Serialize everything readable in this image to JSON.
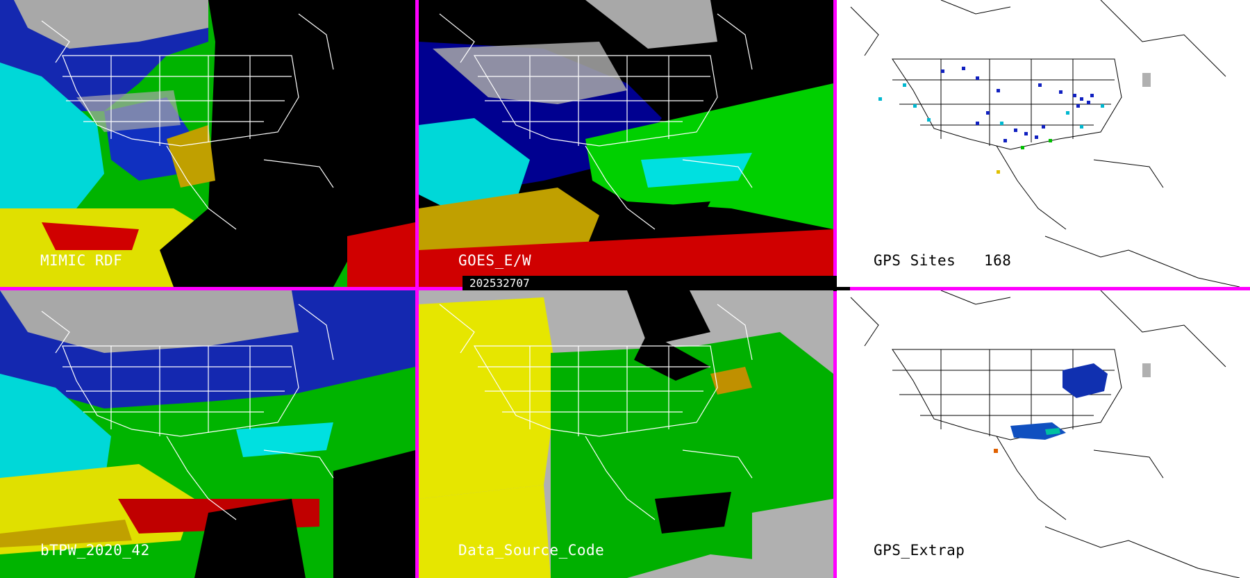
{
  "panels": {
    "p1": {
      "label": "MIMIC RDF"
    },
    "p2": {
      "label": "GOES_E/W",
      "timestamp": "202532707"
    },
    "p3": {
      "label": "GPS Sites",
      "count": "168"
    },
    "p4": {
      "label": "bTPW_2020_42"
    },
    "p5": {
      "label": "Data_Source_Code"
    },
    "p6": {
      "label": "GPS_Extrap"
    }
  },
  "colors": {
    "divider": "#ff00ff",
    "pw_low": "#b0b0b0",
    "pw_1": "#000090",
    "pw_2": "#1030c0",
    "pw_3": "#00e0e0",
    "pw_4": "#00d000",
    "pw_5": "#e0e000",
    "pw_6": "#d00000",
    "source_yellow": "#e6e600",
    "source_green": "#00b000",
    "source_gray": "#b0b0b0"
  }
}
